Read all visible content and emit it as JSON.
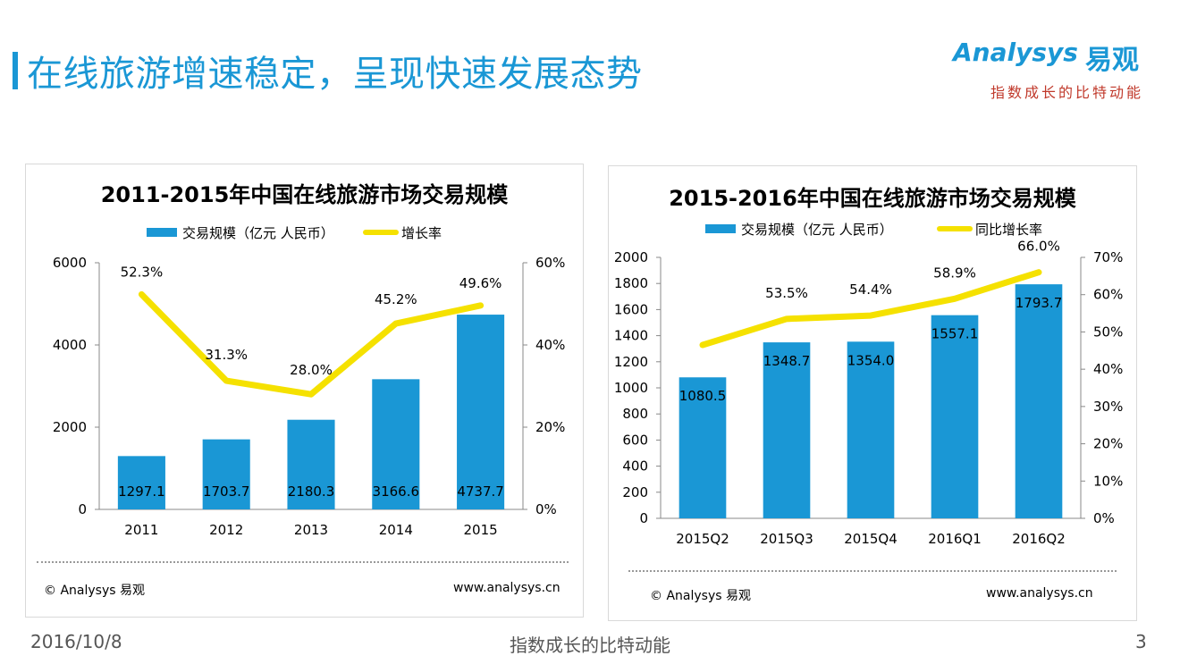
{
  "page": {
    "title": "在线旅游增速稳定，呈现快速发展态势",
    "date": "2016/10/8",
    "slogan": "指数成长的比特动能",
    "page_number": "3"
  },
  "logo": {
    "brand_en": "Analysys",
    "brand_cn": "易观",
    "slogan": "指数成长的比特动能"
  },
  "colors": {
    "accent": "#1a97d5",
    "bar": "#1a97d5",
    "line": "#f5e100",
    "slogan": "#c0392b"
  },
  "chart_data": [
    {
      "type": "bar",
      "title": "2011-2015年中国在线旅游市场交易规模",
      "categories": [
        "2011",
        "2012",
        "2013",
        "2014",
        "2015"
      ],
      "series": [
        {
          "name": "交易规模（亿元 人民币）",
          "type": "bar",
          "axis": "left",
          "values": [
            1297.1,
            1703.7,
            2180.3,
            3166.6,
            4737.7
          ],
          "labels": [
            "1297.1",
            "1703.7",
            "2180.3",
            "3166.6",
            "4737.7"
          ]
        },
        {
          "name": "增长率",
          "type": "line",
          "axis": "right",
          "values": [
            52.3,
            31.3,
            28.0,
            45.2,
            49.6
          ],
          "labels": [
            "52.3%",
            "31.3%",
            "28.0%",
            "45.2%",
            "49.6%"
          ]
        }
      ],
      "y_left": {
        "min": 0,
        "max": 6000,
        "ticks": [
          "0",
          "2000",
          "4000",
          "6000"
        ]
      },
      "y_right": {
        "min": 0,
        "max": 60,
        "ticks": [
          "0%",
          "20%",
          "40%",
          "60%"
        ]
      },
      "source": "© Analysys 易观",
      "website": "www.analysys.cn"
    },
    {
      "type": "bar",
      "title": "2015-2016年中国在线旅游市场交易规模",
      "categories": [
        "2015Q2",
        "2015Q3",
        "2015Q4",
        "2016Q1",
        "2016Q2"
      ],
      "series": [
        {
          "name": "交易规模（亿元 人民币）",
          "type": "bar",
          "axis": "left",
          "values": [
            1080.5,
            1348.7,
            1354.0,
            1557.1,
            1793.7
          ],
          "labels": [
            "1080.5",
            "1348.7",
            "1354.0",
            "1557.1",
            "1793.7"
          ]
        },
        {
          "name": "同比增长率",
          "type": "line",
          "axis": "right",
          "values": [
            46.5,
            53.5,
            54.4,
            58.9,
            66.0
          ],
          "labels": [
            "",
            "53.5%",
            "54.4%",
            "58.9%",
            "66.0%"
          ]
        }
      ],
      "y_left": {
        "min": 0,
        "max": 2000,
        "ticks": [
          "0",
          "200",
          "400",
          "600",
          "800",
          "1000",
          "1200",
          "1400",
          "1600",
          "1800",
          "2000"
        ]
      },
      "y_right": {
        "min": 0,
        "max": 70,
        "ticks": [
          "0%",
          "10%",
          "20%",
          "30%",
          "40%",
          "50%",
          "60%",
          "70%"
        ]
      },
      "source": "© Analysys 易观",
      "website": "www.analysys.cn"
    }
  ]
}
